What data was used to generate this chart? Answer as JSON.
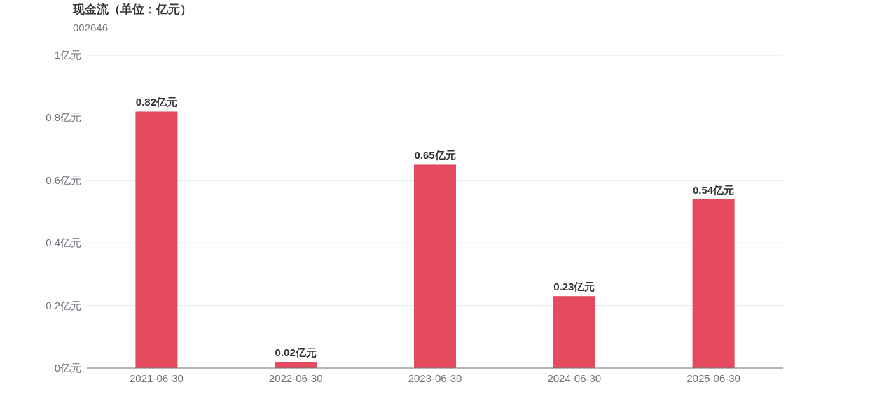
{
  "chart_data": {
    "type": "bar",
    "title": "现金流（单位：亿元）",
    "subtitle": "002646",
    "categories": [
      "2021-06-30",
      "2022-06-30",
      "2023-06-30",
      "2024-06-30",
      "2025-06-30"
    ],
    "values": [
      0.82,
      0.02,
      0.65,
      0.23,
      0.54
    ],
    "value_labels": [
      "0.82亿元",
      "0.02亿元",
      "0.65亿元",
      "0.23亿元",
      "0.54亿元"
    ],
    "color": "#e64a5f",
    "ylim": [
      0,
      1
    ],
    "yticks": [
      {
        "value": 0,
        "label": "0亿元"
      },
      {
        "value": 0.2,
        "label": "0.2亿元"
      },
      {
        "value": 0.4,
        "label": "0.4亿元"
      },
      {
        "value": 0.6,
        "label": "0.6亿元"
      },
      {
        "value": 0.8,
        "label": "0.8亿元"
      },
      {
        "value": 1,
        "label": "1亿元"
      }
    ],
    "grid": "y"
  }
}
